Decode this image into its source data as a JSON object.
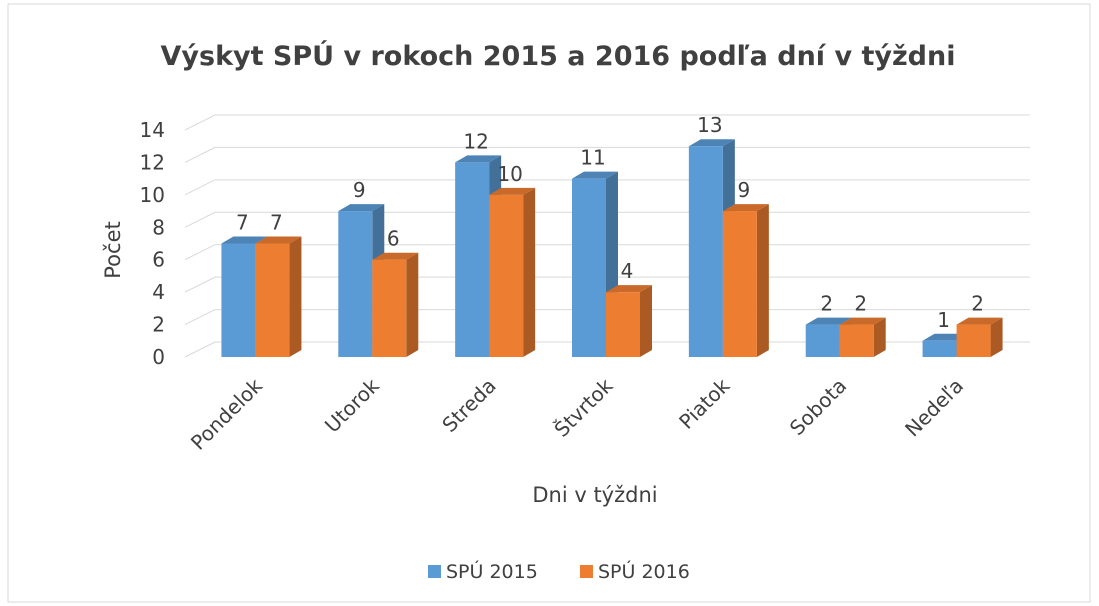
{
  "chart_data": {
    "type": "bar3d",
    "title": "Výskyt SPÚ v rokoch 2015 a 2016 podľa dní v týždni",
    "xlabel": "Dni v týždni",
    "ylabel": "Počet",
    "categories": [
      "Pondelok",
      "Utorok",
      "Streda",
      "Štvrtok",
      "Piatok",
      "Sobota",
      "Nedeľa"
    ],
    "series": [
      {
        "name": "SPÚ 2015",
        "color": "#5b9bd5",
        "values": [
          7,
          9,
          12,
          11,
          13,
          2,
          1
        ]
      },
      {
        "name": "SPÚ 2016",
        "color": "#ed7d31",
        "values": [
          7,
          6,
          10,
          4,
          9,
          2,
          2
        ]
      }
    ],
    "ylim": [
      0,
      14
    ],
    "yticks": [
      0,
      2,
      4,
      6,
      8,
      10,
      12,
      14
    ],
    "grid": true,
    "legend": "bottom"
  }
}
